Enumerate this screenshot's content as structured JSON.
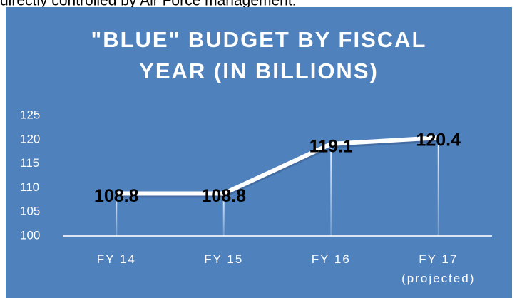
{
  "page": {
    "intro_text": "directly controlled by Air Force management."
  },
  "chart_data": {
    "type": "line",
    "title": [
      "\"BLUE\" BUDGET BY FISCAL",
      "YEAR (IN BILLIONS)"
    ],
    "categories": [
      [
        "FY 14"
      ],
      [
        "FY 15"
      ],
      [
        "FY 16"
      ],
      [
        "FY 17",
        "(projected)"
      ]
    ],
    "values": [
      108.8,
      108.8,
      119.1,
      120.4
    ],
    "color": "#ffffff",
    "ylim": [
      100,
      125
    ],
    "yticks": [
      100,
      105,
      110,
      115,
      120,
      125
    ],
    "grid": false
  }
}
